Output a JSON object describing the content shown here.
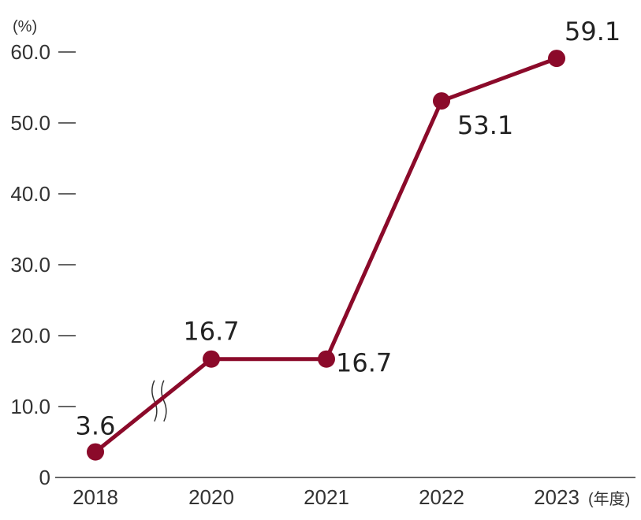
{
  "chart_data": {
    "type": "line",
    "title": "",
    "xlabel": "",
    "ylabel": "",
    "y_unit": "(%)",
    "x_unit": "(年度)",
    "categories": [
      "2018",
      "2020",
      "2021",
      "2022",
      "2023"
    ],
    "values": [
      3.6,
      16.7,
      16.7,
      53.1,
      59.1
    ],
    "value_labels": [
      "3.6",
      "16.7",
      "16.7",
      "53.1",
      "59.1"
    ],
    "ylim": [
      0,
      60
    ],
    "yticks": [
      0,
      10,
      20,
      30,
      40,
      50,
      60
    ],
    "ytick_labels": [
      "0",
      "10.0",
      "20.0",
      "30.0",
      "40.0",
      "50.0",
      "60.0"
    ],
    "axis_break_between": [
      "2018",
      "2020"
    ],
    "grid": false,
    "legend": "none",
    "line_color": "#8b0a2a",
    "marker_color": "#8b0a2a"
  }
}
